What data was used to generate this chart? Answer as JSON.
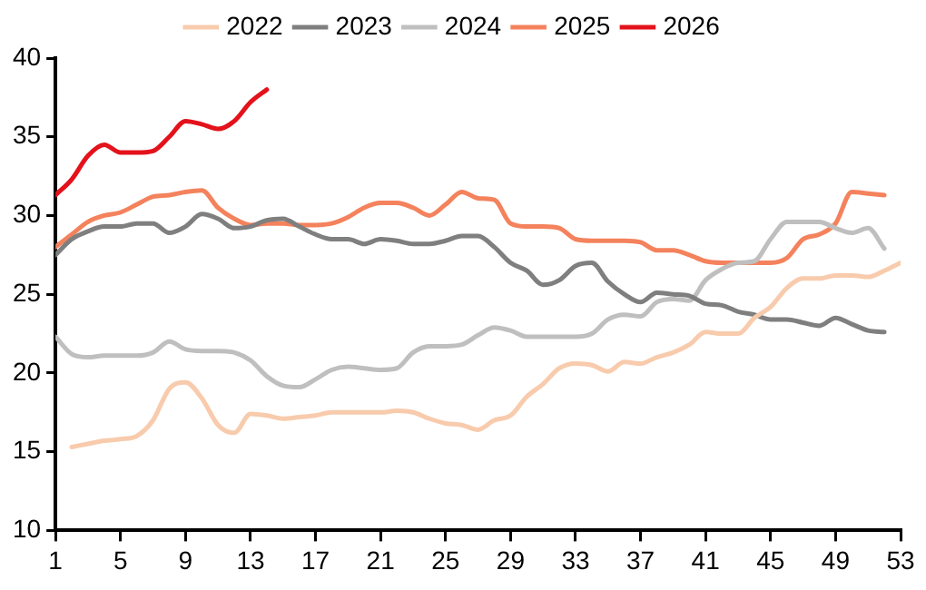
{
  "chart_data": {
    "type": "line",
    "x": [
      1,
      2,
      3,
      4,
      5,
      6,
      7,
      8,
      9,
      10,
      11,
      12,
      13,
      14,
      15,
      16,
      17,
      18,
      19,
      20,
      21,
      22,
      23,
      24,
      25,
      26,
      27,
      28,
      29,
      30,
      31,
      32,
      33,
      34,
      35,
      36,
      37,
      38,
      39,
      40,
      41,
      42,
      43,
      44,
      45,
      46,
      47,
      48,
      49,
      50,
      51,
      52,
      53
    ],
    "series": [
      {
        "name": "2022",
        "color": "#f8cbad",
        "values": [
          null,
          15.3,
          15.5,
          15.7,
          15.8,
          16.0,
          17.0,
          19.0,
          19.4,
          18.4,
          16.7,
          16.2,
          17.4,
          17.3,
          17.1,
          17.2,
          17.3,
          17.5,
          17.5,
          17.5,
          17.5,
          17.6,
          17.5,
          17.1,
          16.8,
          16.7,
          16.4,
          17.0,
          17.3,
          18.5,
          19.3,
          20.3,
          20.6,
          20.5,
          20.1,
          20.7,
          20.6,
          21.0,
          21.3,
          21.8,
          22.6,
          22.5,
          22.5,
          23.5,
          24.2,
          25.4,
          26.0,
          26.0,
          26.2,
          26.2,
          26.1,
          26.5,
          27.0
        ]
      },
      {
        "name": "2023",
        "color": "#7f7f7f",
        "values": [
          27.5,
          28.5,
          29.0,
          29.3,
          29.3,
          29.5,
          29.5,
          28.9,
          29.3,
          30.1,
          29.8,
          29.2,
          29.3,
          29.7,
          29.8,
          29.3,
          28.8,
          28.5,
          28.5,
          28.2,
          28.5,
          28.4,
          28.2,
          28.2,
          28.4,
          28.7,
          28.7,
          28.0,
          27.0,
          26.5,
          25.6,
          25.9,
          26.8,
          27.0,
          25.8,
          25.0,
          24.5,
          25.1,
          25.0,
          24.9,
          24.4,
          24.3,
          23.9,
          23.7,
          23.4,
          23.4,
          23.2,
          23.0,
          23.5,
          23.1,
          22.7,
          22.6,
          null
        ]
      },
      {
        "name": "2024",
        "color": "#bfbfbf",
        "values": [
          22.3,
          21.2,
          21.0,
          21.1,
          21.1,
          21.1,
          21.3,
          22.0,
          21.5,
          21.4,
          21.4,
          21.3,
          20.8,
          19.8,
          19.2,
          19.1,
          19.6,
          20.2,
          20.4,
          20.3,
          20.2,
          20.3,
          21.3,
          21.7,
          21.7,
          21.8,
          22.4,
          22.9,
          22.7,
          22.3,
          22.3,
          22.3,
          22.3,
          22.5,
          23.4,
          23.7,
          23.6,
          24.5,
          24.7,
          24.6,
          25.9,
          26.6,
          27.0,
          27.1,
          28.5,
          29.6,
          29.6,
          29.6,
          29.2,
          28.9,
          29.2,
          27.9,
          null
        ]
      },
      {
        "name": "2025",
        "color": "#f4825c",
        "values": [
          28.0,
          28.8,
          29.6,
          30.0,
          30.2,
          30.7,
          31.2,
          31.3,
          31.5,
          31.6,
          30.5,
          29.8,
          29.4,
          29.5,
          29.5,
          29.4,
          29.4,
          29.5,
          29.9,
          30.5,
          30.8,
          30.8,
          30.5,
          30.0,
          30.7,
          31.5,
          31.1,
          31.0,
          29.5,
          29.3,
          29.3,
          29.2,
          28.5,
          28.4,
          28.4,
          28.4,
          28.3,
          27.8,
          27.8,
          27.5,
          27.1,
          27.0,
          27.0,
          27.0,
          27.0,
          27.3,
          28.5,
          28.8,
          29.5,
          31.5,
          31.4,
          31.3,
          null
        ]
      },
      {
        "name": "2026",
        "color": "#e3121b",
        "values": [
          31.3,
          32.3,
          33.8,
          34.5,
          34.0,
          34.0,
          34.1,
          35.0,
          36.0,
          35.8,
          35.5,
          36.0,
          37.2,
          38.0,
          null,
          null,
          null,
          null,
          null,
          null,
          null,
          null,
          null,
          null,
          null,
          null,
          null,
          null,
          null,
          null,
          null,
          null,
          null,
          null,
          null,
          null,
          null,
          null,
          null,
          null,
          null,
          null,
          null,
          null,
          null,
          null,
          null,
          null,
          null,
          null,
          null,
          null,
          null
        ]
      }
    ],
    "xlim": [
      1,
      53
    ],
    "xticks": [
      1,
      5,
      9,
      13,
      17,
      21,
      25,
      29,
      33,
      37,
      41,
      45,
      49,
      53
    ],
    "ylim": [
      10,
      40
    ],
    "yticks": [
      10,
      15,
      20,
      25,
      30,
      35,
      40
    ],
    "grid": false,
    "legend": "top",
    "marker": "none",
    "line_style": "solid"
  }
}
